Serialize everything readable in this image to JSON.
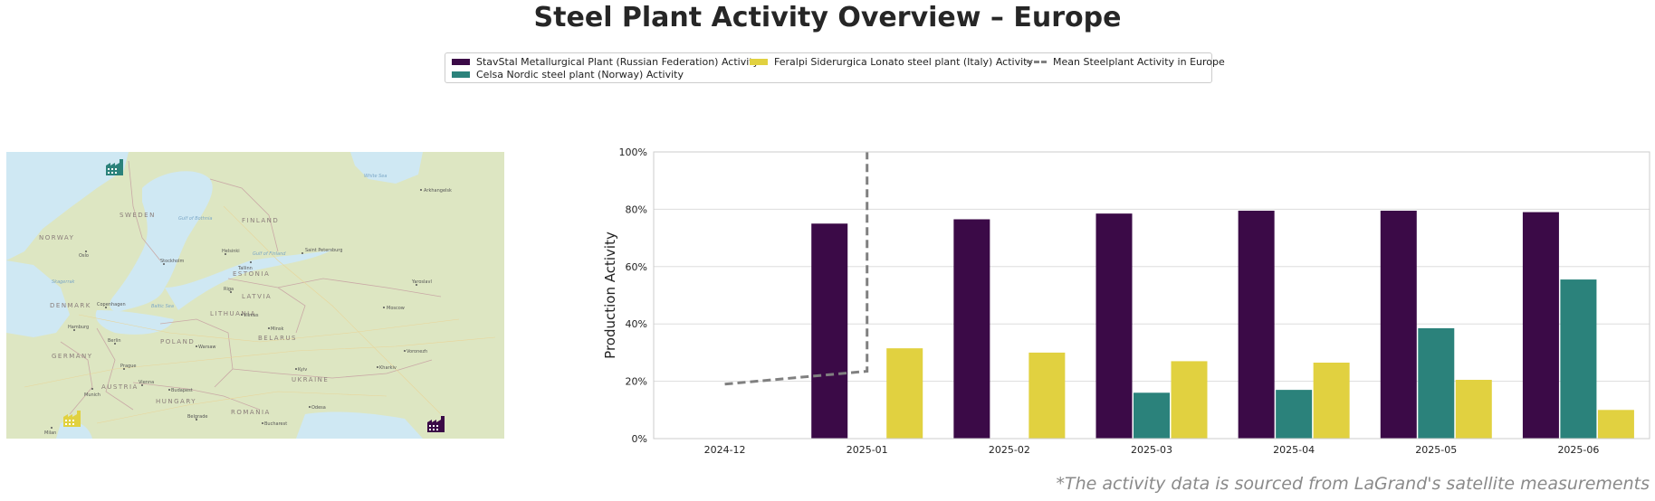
{
  "title": "Steel Plant Activity Overview – Europe",
  "footnote": "*The activity data is sourced from LaGrand's satellite measurements",
  "legend": {
    "items": [
      {
        "label": "StavStal Metallurgical Plant (Russian Federation) Activity",
        "color": "#3b0a47",
        "kind": "bar"
      },
      {
        "label": "Celsa Nordic steel plant (Norway) Activity",
        "color": "#2b827b",
        "kind": "bar"
      },
      {
        "label": "Feralpi Siderurgica Lonato steel plant (Italy) Activity",
        "color": "#e1d140",
        "kind": "bar"
      },
      {
        "label": "Mean Steelplant Activity in Europe",
        "color": "#808080",
        "kind": "dashed-line"
      }
    ]
  },
  "map": {
    "countries": [
      "SWEDEN",
      "FINLAND",
      "NORWAY",
      "ESTONIA",
      "LATVIA",
      "LITHUANIA",
      "BELARUS",
      "POLAND",
      "GERMANY",
      "UKRAINE",
      "DENMARK",
      "AUSTRIA",
      "HUNGARY",
      "ROMANIA"
    ],
    "cities": [
      "Arkhangelsk",
      "Helsinki",
      "Saint Petersburg",
      "Tallinn",
      "Stockholm",
      "Oslo",
      "Riga",
      "Moscow",
      "Yaroslavl",
      "Minsk",
      "Vilnius",
      "Warsaw",
      "Berlin",
      "Hamburg",
      "Copenhagen",
      "Prague",
      "Vienna",
      "Budapest",
      "Kyiv",
      "Kharkiv",
      "Odesa",
      "Voronezh",
      "Belgrade",
      "Bucharest",
      "Munich",
      "Milan"
    ],
    "seas": [
      "Gulf of Bothnia",
      "Baltic Sea",
      "Skagerrak",
      "Gulf of Finland",
      "White Sea"
    ],
    "markers": [
      {
        "plant": "Celsa Nordic steel plant (Norway)",
        "color": "#2b827b",
        "icon": "factory-icon"
      },
      {
        "plant": "Feralpi Siderurgica Lonato steel plant (Italy)",
        "color": "#e1d140",
        "icon": "factory-icon"
      },
      {
        "plant": "StavStal Metallurgical Plant (Russian Federation)",
        "color": "#3b0a47",
        "icon": "factory-icon"
      }
    ]
  },
  "chart_data": {
    "type": "bar",
    "title": "",
    "xlabel": "",
    "ylabel": "Production Activity",
    "categories": [
      "2024-12",
      "2025-01",
      "2025-02",
      "2025-03",
      "2025-04",
      "2025-05",
      "2025-06"
    ],
    "yticks": [
      "0%",
      "20%",
      "40%",
      "60%",
      "80%",
      "100%"
    ],
    "ylim": [
      0,
      100
    ],
    "grid": true,
    "series": [
      {
        "name": "StavStal Metallurgical Plant (Russian Federation) Activity",
        "color": "#3b0a47",
        "values": [
          null,
          75,
          76.5,
          78.5,
          79.5,
          79.5,
          79
        ]
      },
      {
        "name": "Celsa Nordic steel plant (Norway) Activity",
        "color": "#2b827b",
        "values": [
          null,
          null,
          null,
          16,
          17,
          38.5,
          55.5
        ]
      },
      {
        "name": "Feralpi Siderurgica Lonato steel plant (Italy) Activity",
        "color": "#e1d140",
        "values": [
          null,
          31.5,
          30,
          27,
          26.5,
          20.5,
          10
        ]
      }
    ],
    "mean_line": {
      "name": "Mean Steelplant Activity in Europe",
      "color": "#808080",
      "points": [
        {
          "x": "2024-12",
          "y": 19
        },
        {
          "x": "2025-01",
          "y": 23.5
        },
        {
          "x": "2025-01",
          "y": 100
        }
      ]
    }
  }
}
